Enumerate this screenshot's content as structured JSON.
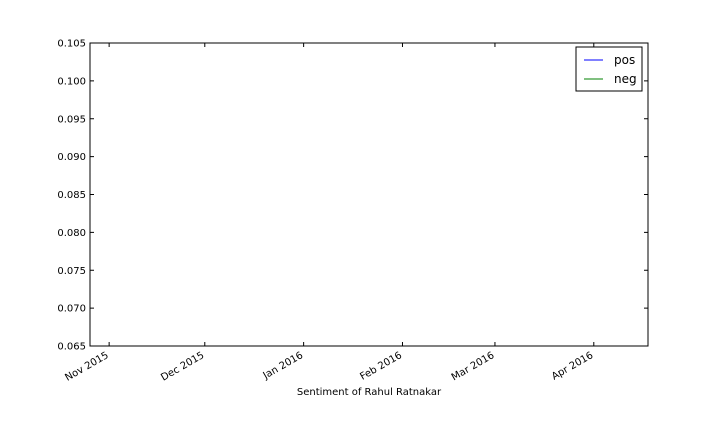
{
  "chart_data": {
    "type": "line",
    "title": "",
    "xlabel": "Sentiment of Rahul Ratnakar",
    "ylabel": "",
    "x_ticks": [
      "Nov 2015",
      "Dec 2015",
      "Jan 2016",
      "Feb 2016",
      "Mar 2016",
      "Apr 2016"
    ],
    "x_tick_dates": [
      "2015-11-01",
      "2015-12-01",
      "2016-01-01",
      "2016-02-01",
      "2016-03-01",
      "2016-04-01"
    ],
    "xlim": [
      "2015-10-26",
      "2016-04-18"
    ],
    "y_ticks": [
      "0.065",
      "0.070",
      "0.075",
      "0.080",
      "0.085",
      "0.090",
      "0.095",
      "0.100",
      "0.105"
    ],
    "ylim": [
      0.065,
      0.105
    ],
    "series": [
      {
        "name": "pos",
        "color": "#0000ff",
        "points": []
      },
      {
        "name": "neg",
        "color": "#008000",
        "points": []
      }
    ],
    "legend": {
      "position": "top-right",
      "entries": [
        "pos",
        "neg"
      ]
    },
    "grid": false
  }
}
